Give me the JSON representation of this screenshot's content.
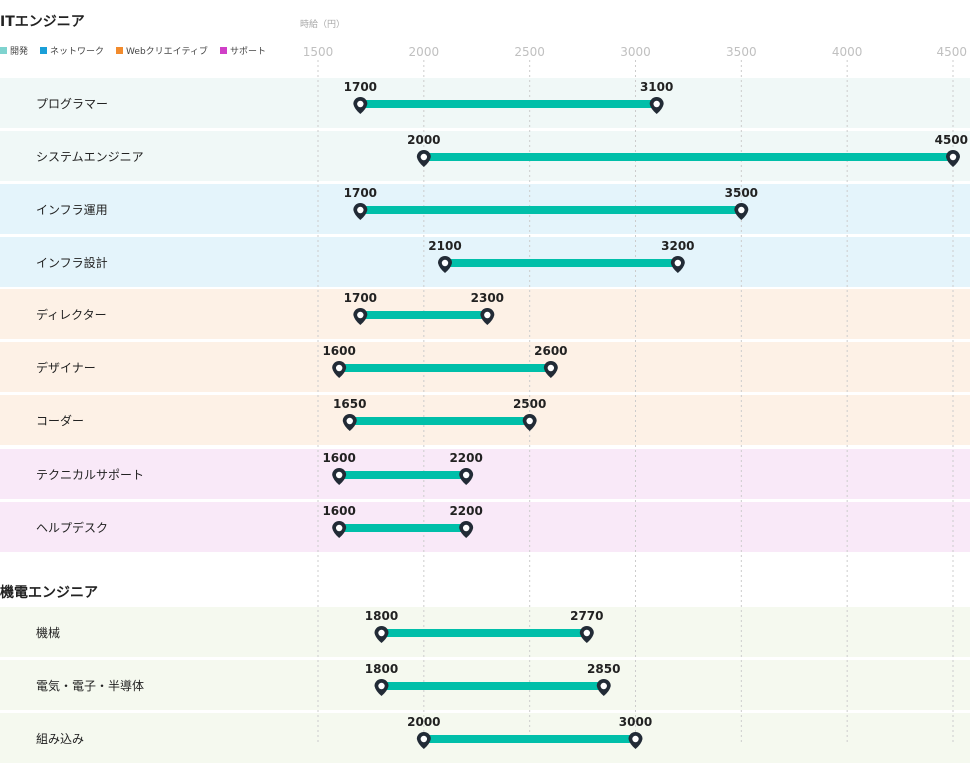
{
  "sections": [
    {
      "title": "ITエンジニア"
    },
    {
      "title": "機電エンジニア"
    }
  ],
  "unit_label": "時給（円）",
  "legend": [
    {
      "label": "開発",
      "color": "#7fd3cf"
    },
    {
      "label": "ネットワーク",
      "color": "#1a9fd8"
    },
    {
      "label": "Webクリエイティブ",
      "color": "#f28b2c"
    },
    {
      "label": "サポート",
      "color": "#d03fc7"
    }
  ],
  "colors": {
    "bar": "#00bfa9",
    "marker": "#222b36",
    "grid": "#cccccc",
    "tick": "#c0c0c0",
    "row_dev": "#f0f8f7",
    "row_network": "#e4f4fb",
    "row_web": "#fdf1e6",
    "row_support": "#f9e9f8",
    "row_kiden": "#f5f9ef"
  },
  "chart_data": {
    "type": "range-bar",
    "xlim": [
      1500,
      4500
    ],
    "xticks": [
      1500,
      2000,
      2500,
      3000,
      3500,
      4000,
      4500
    ],
    "rows": [
      {
        "name": "プログラマー",
        "min": 1700,
        "max": 3100,
        "category": "row_dev"
      },
      {
        "name": "システムエンジニア",
        "min": 2000,
        "max": 4500,
        "category": "row_dev"
      },
      {
        "name": "インフラ運用",
        "min": 1700,
        "max": 3500,
        "category": "row_network"
      },
      {
        "name": "インフラ設計",
        "min": 2100,
        "max": 3200,
        "category": "row_network"
      },
      {
        "name": "ディレクター",
        "min": 1700,
        "max": 2300,
        "category": "row_web"
      },
      {
        "name": "デザイナー",
        "min": 1600,
        "max": 2600,
        "category": "row_web"
      },
      {
        "name": "コーダー",
        "min": 1650,
        "max": 2500,
        "category": "row_web"
      },
      {
        "name": "テクニカルサポート",
        "min": 1600,
        "max": 2200,
        "category": "row_support"
      },
      {
        "name": "ヘルプデスク",
        "min": 1600,
        "max": 2200,
        "category": "row_support"
      },
      {
        "name": "機械",
        "min": 1800,
        "max": 2770,
        "category": "row_kiden"
      },
      {
        "name": "電気・電子・半導体",
        "min": 1800,
        "max": 2850,
        "category": "row_kiden"
      },
      {
        "name": "組み込み",
        "min": 2000,
        "max": 3000,
        "category": "row_kiden"
      }
    ]
  }
}
